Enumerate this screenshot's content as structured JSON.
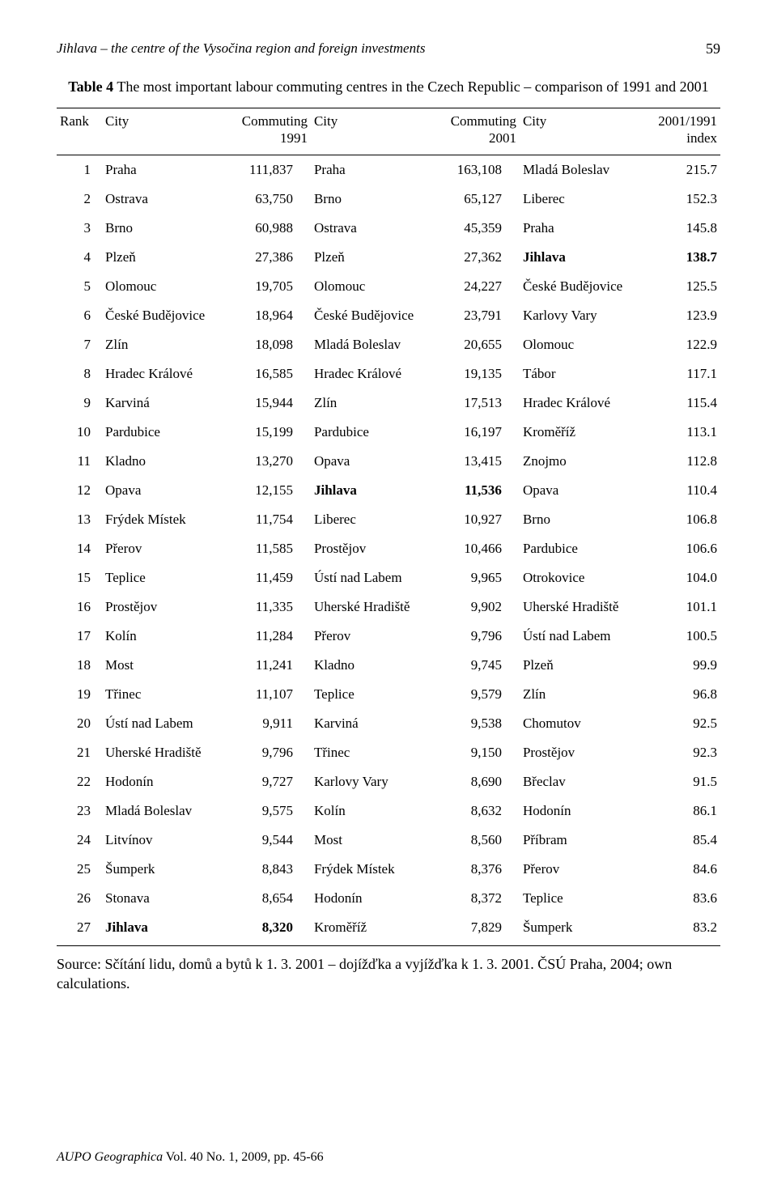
{
  "running_title": "Jihlava – the centre of the Vysočina region and foreign investments",
  "page_number": "59",
  "table": {
    "label": "Table 4",
    "title": "The most important labour commuting centres in the Czech Republic – comparison of 1991 and 2001",
    "columns": {
      "rank": "Rank",
      "city1": "City",
      "comm1_a": "Commuting",
      "comm1_b": "1991",
      "city2": "City",
      "comm2_a": "Commuting",
      "comm2_b": "2001",
      "city3": "City",
      "idx_a": "2001/1991",
      "idx_b": "index"
    },
    "bold_cells": [
      [
        4,
        "idx_city"
      ],
      [
        4,
        "idx"
      ],
      [
        12,
        "city2"
      ],
      [
        12,
        "v2"
      ],
      [
        27,
        "city1"
      ],
      [
        27,
        "v1"
      ]
    ],
    "rows": [
      {
        "rank": "1",
        "city1": "Praha",
        "v1": "111,837",
        "city2": "Praha",
        "v2": "163,108",
        "idx_city": "Mladá Boleslav",
        "idx": "215.7"
      },
      {
        "rank": "2",
        "city1": "Ostrava",
        "v1": "63,750",
        "city2": "Brno",
        "v2": "65,127",
        "idx_city": "Liberec",
        "idx": "152.3"
      },
      {
        "rank": "3",
        "city1": "Brno",
        "v1": "60,988",
        "city2": "Ostrava",
        "v2": "45,359",
        "idx_city": "Praha",
        "idx": "145.8"
      },
      {
        "rank": "4",
        "city1": "Plzeň",
        "v1": "27,386",
        "city2": "Plzeň",
        "v2": "27,362",
        "idx_city": "Jihlava",
        "idx": "138.7"
      },
      {
        "rank": "5",
        "city1": "Olomouc",
        "v1": "19,705",
        "city2": "Olomouc",
        "v2": "24,227",
        "idx_city": "České Budějovice",
        "idx": "125.5"
      },
      {
        "rank": "6",
        "city1": "České Budějovice",
        "v1": "18,964",
        "city2": "České Budějovice",
        "v2": "23,791",
        "idx_city": "Karlovy Vary",
        "idx": "123.9"
      },
      {
        "rank": "7",
        "city1": "Zlín",
        "v1": "18,098",
        "city2": "Mladá Boleslav",
        "v2": "20,655",
        "idx_city": "Olomouc",
        "idx": "122.9"
      },
      {
        "rank": "8",
        "city1": "Hradec Králové",
        "v1": "16,585",
        "city2": "Hradec Králové",
        "v2": "19,135",
        "idx_city": "Tábor",
        "idx": "117.1"
      },
      {
        "rank": "9",
        "city1": "Karviná",
        "v1": "15,944",
        "city2": "Zlín",
        "v2": "17,513",
        "idx_city": "Hradec Králové",
        "idx": "115.4"
      },
      {
        "rank": "10",
        "city1": "Pardubice",
        "v1": "15,199",
        "city2": "Pardubice",
        "v2": "16,197",
        "idx_city": "Kroměříž",
        "idx": "113.1"
      },
      {
        "rank": "11",
        "city1": "Kladno",
        "v1": "13,270",
        "city2": "Opava",
        "v2": "13,415",
        "idx_city": "Znojmo",
        "idx": "112.8"
      },
      {
        "rank": "12",
        "city1": "Opava",
        "v1": "12,155",
        "city2": "Jihlava",
        "v2": "11,536",
        "idx_city": "Opava",
        "idx": "110.4"
      },
      {
        "rank": "13",
        "city1": "Frýdek Místek",
        "v1": "11,754",
        "city2": "Liberec",
        "v2": "10,927",
        "idx_city": "Brno",
        "idx": "106.8"
      },
      {
        "rank": "14",
        "city1": "Přerov",
        "v1": "11,585",
        "city2": "Prostějov",
        "v2": "10,466",
        "idx_city": "Pardubice",
        "idx": "106.6"
      },
      {
        "rank": "15",
        "city1": "Teplice",
        "v1": "11,459",
        "city2": "Ústí nad Labem",
        "v2": "9,965",
        "idx_city": "Otrokovice",
        "idx": "104.0"
      },
      {
        "rank": "16",
        "city1": "Prostějov",
        "v1": "11,335",
        "city2": "Uherské Hradiště",
        "v2": "9,902",
        "idx_city": "Uherské Hradiště",
        "idx": "101.1"
      },
      {
        "rank": "17",
        "city1": "Kolín",
        "v1": "11,284",
        "city2": "Přerov",
        "v2": "9,796",
        "idx_city": "Ústí nad Labem",
        "idx": "100.5"
      },
      {
        "rank": "18",
        "city1": "Most",
        "v1": "11,241",
        "city2": "Kladno",
        "v2": "9,745",
        "idx_city": "Plzeň",
        "idx": "99.9"
      },
      {
        "rank": "19",
        "city1": "Třinec",
        "v1": "11,107",
        "city2": "Teplice",
        "v2": "9,579",
        "idx_city": "Zlín",
        "idx": "96.8"
      },
      {
        "rank": "20",
        "city1": "Ústí nad Labem",
        "v1": "9,911",
        "city2": "Karviná",
        "v2": "9,538",
        "idx_city": "Chomutov",
        "idx": "92.5"
      },
      {
        "rank": "21",
        "city1": "Uherské Hradiště",
        "v1": "9,796",
        "city2": "Třinec",
        "v2": "9,150",
        "idx_city": "Prostějov",
        "idx": "92.3"
      },
      {
        "rank": "22",
        "city1": "Hodonín",
        "v1": "9,727",
        "city2": "Karlovy Vary",
        "v2": "8,690",
        "idx_city": "Břeclav",
        "idx": "91.5"
      },
      {
        "rank": "23",
        "city1": "Mladá Boleslav",
        "v1": "9,575",
        "city2": "Kolín",
        "v2": "8,632",
        "idx_city": "Hodonín",
        "idx": "86.1"
      },
      {
        "rank": "24",
        "city1": "Litvínov",
        "v1": "9,544",
        "city2": "Most",
        "v2": "8,560",
        "idx_city": "Příbram",
        "idx": "85.4"
      },
      {
        "rank": "25",
        "city1": "Šumperk",
        "v1": "8,843",
        "city2": "Frýdek Místek",
        "v2": "8,376",
        "idx_city": "Přerov",
        "idx": "84.6"
      },
      {
        "rank": "26",
        "city1": "Stonava",
        "v1": "8,654",
        "city2": "Hodonín",
        "v2": "8,372",
        "idx_city": "Teplice",
        "idx": "83.6"
      },
      {
        "rank": "27",
        "city1": "Jihlava",
        "v1": "8,320",
        "city2": "Kroměříž",
        "v2": "7,829",
        "idx_city": "Šumperk",
        "idx": "83.2"
      }
    ]
  },
  "source": "Source: Sčítání lidu, domů a bytů k 1. 3. 2001 – dojížďka a vyjížďka k 1. 3. 2001. ČSÚ Praha, 2004; own calculations.",
  "footer_journal": "AUPO Geographica",
  "footer_issue": " Vol. 40 No. 1, 2009, pp. 45-66"
}
